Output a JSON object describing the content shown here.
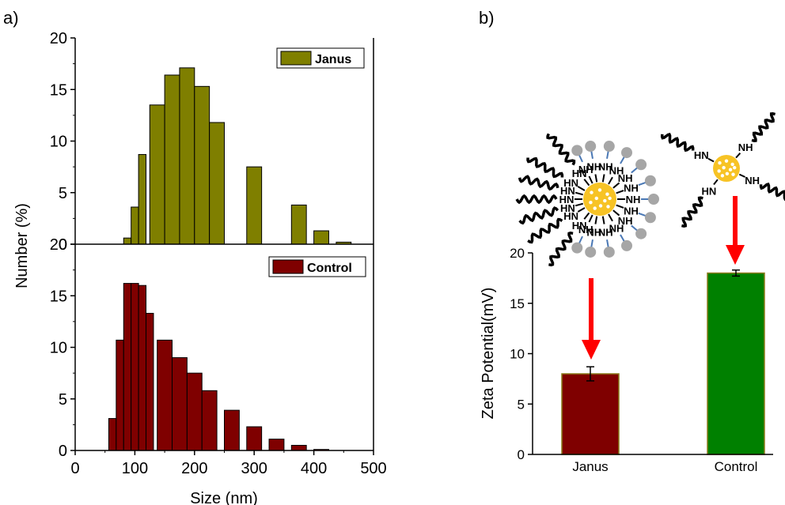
{
  "panels": {
    "a": "a)",
    "b": "b)"
  },
  "colors": {
    "janus": "#7f7f00",
    "control": "#7f0000",
    "control_bar": "#008000",
    "arrow": "#ff0000",
    "core": "#f7c325",
    "ligand_end": "#a6a6a6",
    "linker": "#4a78b5"
  },
  "chart_data": [
    {
      "type": "bar",
      "panel": "a-top",
      "legend": "Janus",
      "legend_position": "top-right",
      "xlim": [
        0,
        500
      ],
      "ylim": [
        0,
        20
      ],
      "yticks": [
        "0",
        "5",
        "10",
        "15",
        "20"
      ],
      "bin_width": 25,
      "x": [
        87.5,
        100,
        112.5,
        137.5,
        162.5,
        187.5,
        212.5,
        237.5,
        262.5,
        300,
        337.5,
        375,
        412.5,
        450,
        475
      ],
      "x_widths": [
        12.5,
        12.5,
        12.5,
        25,
        25,
        25,
        25,
        25,
        25,
        25,
        25,
        25,
        25,
        25,
        25
      ],
      "values": [
        0.6,
        3.6,
        8.7,
        13.5,
        16.4,
        17.1,
        15.3,
        11.8,
        0,
        7.5,
        0,
        3.8,
        1.3,
        0.2,
        0
      ],
      "series": [
        {
          "name": "Janus",
          "color": "#7f7f00"
        }
      ]
    },
    {
      "type": "bar",
      "panel": "a-bottom",
      "legend": "Control",
      "legend_position": "top-right",
      "xlim": [
        0,
        500
      ],
      "ylim": [
        0,
        20
      ],
      "xticks": [
        "0",
        "100",
        "200",
        "300",
        "400",
        "500"
      ],
      "yticks": [
        "0",
        "5",
        "10",
        "15",
        "20"
      ],
      "xlabel": "Size (nm)",
      "ylabel": "Number (%)",
      "x": [
        62.5,
        75,
        87.5,
        100,
        112.5,
        125,
        150,
        175,
        200,
        225,
        262.5,
        300,
        337.5,
        375,
        412.5,
        450
      ],
      "x_widths": [
        12.5,
        12.5,
        12.5,
        12.5,
        12.5,
        12.5,
        25,
        25,
        25,
        25,
        25,
        25,
        25,
        25,
        25,
        25
      ],
      "values": [
        3.1,
        10.7,
        16.2,
        16.2,
        16.0,
        13.3,
        10.7,
        9.0,
        7.5,
        5.8,
        3.9,
        2.3,
        1.1,
        0.5,
        0.1,
        0
      ],
      "series": [
        {
          "name": "Control",
          "color": "#7f0000"
        }
      ]
    },
    {
      "type": "bar",
      "panel": "b",
      "categories": [
        "Janus",
        "Control"
      ],
      "values": [
        8.0,
        18.0
      ],
      "errors": [
        0.7,
        0.3
      ],
      "ylim": [
        0,
        20
      ],
      "yticks": [
        "0",
        "5",
        "10",
        "15",
        "20"
      ],
      "ylabel": "Zeta Potential(mV)",
      "colors": [
        "#7f0000",
        "#008000"
      ]
    }
  ],
  "schematic": {
    "labels": {
      "nh": "NH",
      "hn": "HN"
    }
  }
}
